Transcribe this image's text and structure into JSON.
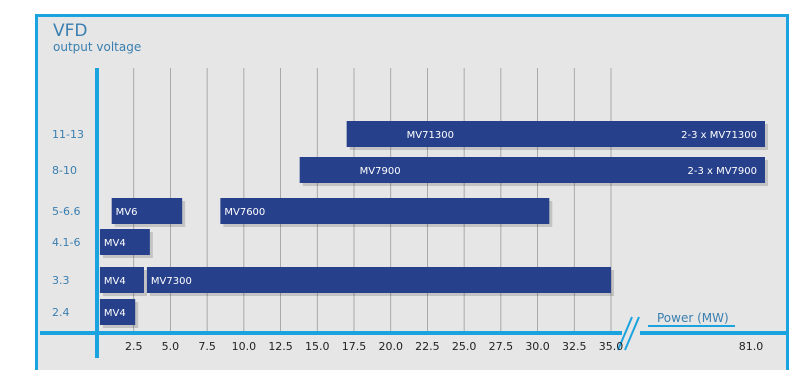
{
  "chart_data": {
    "type": "bar",
    "subtype": "floating-horizontal",
    "title": "VFD",
    "subtitle": "output voltage",
    "xlabel": "Power (MW)",
    "ylabel": "",
    "categories": [
      "11-13",
      "8-10",
      "5-6.6",
      "4.1-6",
      "3.3",
      "2.4"
    ],
    "x_ticks": [
      "2.5",
      "5.0",
      "7.5",
      "10.0",
      "12.5",
      "15.0",
      "17.5",
      "20.0",
      "22.5",
      "25.0",
      "27.5",
      "30.0",
      "32.5",
      "35.0"
    ],
    "x_break_tick": "81.0",
    "xlim": [
      0,
      81.0
    ],
    "axis_break": [
      35.0,
      81.0
    ],
    "grid": true,
    "bars": [
      {
        "category": "11-13",
        "label": "MV71300",
        "right_label": "2-3 x MV71300",
        "start": 17.0,
        "end": 81.0
      },
      {
        "category": "8-10",
        "label": "MV7900",
        "right_label": "2-3 x MV7900",
        "start": 13.8,
        "end": 81.0
      },
      {
        "category": "5-6.6",
        "label": "MV6",
        "right_label": "",
        "start": 1.0,
        "end": 5.8
      },
      {
        "category": "5-6.6",
        "label": "MV7600",
        "right_label": "",
        "start": 8.4,
        "end": 30.8
      },
      {
        "category": "4.1-6",
        "label": "MV4",
        "right_label": "",
        "start": 0.2,
        "end": 3.6
      },
      {
        "category": "3.3",
        "label": "MV4",
        "right_label": "",
        "start": 0.2,
        "end": 3.2
      },
      {
        "category": "3.3",
        "label": "MV7300",
        "right_label": "",
        "start": 3.4,
        "end": 35.0
      },
      {
        "category": "2.4",
        "label": "MV4",
        "right_label": "",
        "start": 0.2,
        "end": 2.6
      }
    ],
    "colors": {
      "bar": "#27408b",
      "axis": "#1ba3e0",
      "text": "#3a7fb0",
      "grid": "#9a9a9a",
      "background": "#e6e6e6"
    }
  }
}
